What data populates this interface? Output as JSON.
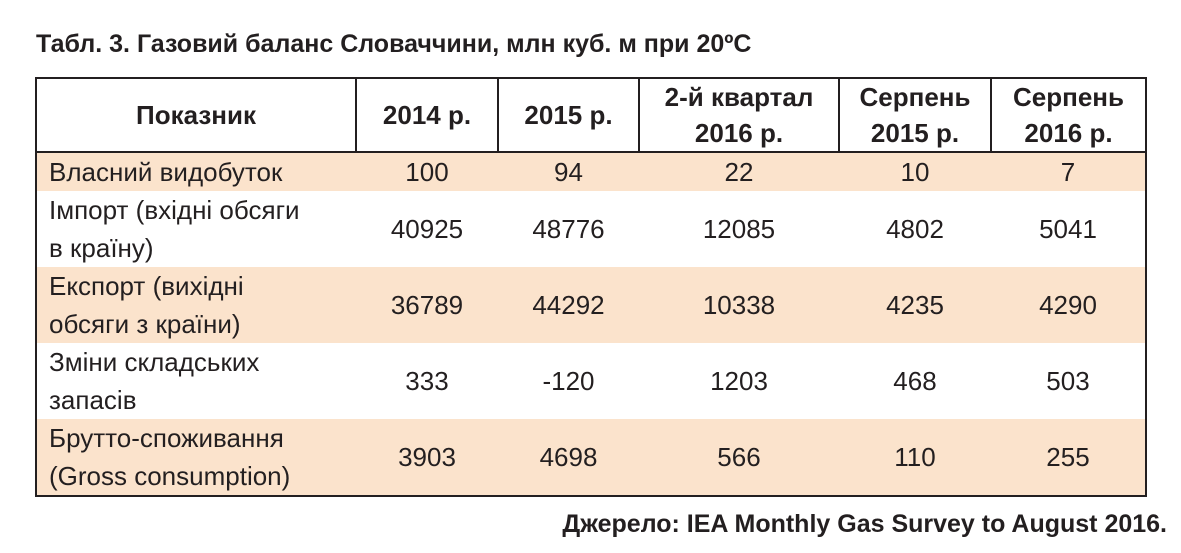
{
  "title": "Табл. 3. Газовий баланс Словаччини, млн куб. м при 20ºС",
  "table": {
    "header": [
      "Показник",
      "2014 р.",
      "2015 р.",
      "2-й квартал\n2016 р.",
      "Серпень\n2015 р.",
      "Серпень\n2016 р."
    ],
    "rows": [
      [
        "Власний видобуток",
        100,
        94,
        22,
        10,
        7
      ],
      [
        "Імпорт (вхідні обсяги\nв країну)",
        40925,
        48776,
        12085,
        4802,
        5041
      ],
      [
        "Експорт (вихідні\nобсяги з країни)",
        36789,
        44292,
        10338,
        4235,
        4290
      ],
      [
        "Зміни складських\nзапасів",
        333,
        -120,
        1203,
        468,
        503
      ],
      [
        "Брутто-споживання\n(Gross consumption)",
        3903,
        4698,
        566,
        110,
        255
      ]
    ]
  },
  "source": "Джерело: IEA Monthly Gas Survey to August 2016."
}
